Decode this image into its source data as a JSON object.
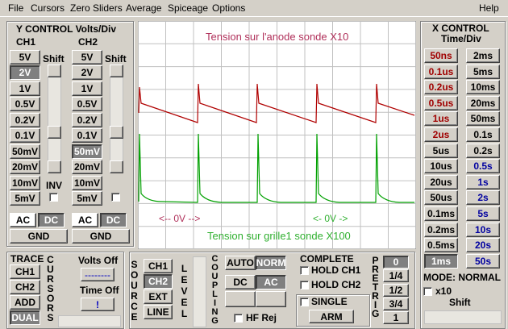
{
  "menu": [
    "File",
    "Cursors",
    "Zero Sliders",
    "Average",
    "Spiceage",
    "Options",
    "Help"
  ],
  "y_control": {
    "title": "Y CONTROL Volts/Div",
    "ch1": {
      "label": "CH1",
      "volts": [
        "5V",
        "2V",
        "1V",
        "0.5V",
        "0.2V",
        "0.1V",
        "50mV",
        "20mV",
        "10mV",
        "5mV"
      ],
      "shift": "Shift",
      "inv": "INV",
      "ac": "AC",
      "dc": "DC",
      "gnd": "GND"
    },
    "ch2": {
      "label": "CH2",
      "volts": [
        "5V",
        "2V",
        "1V",
        "0.5V",
        "0.2V",
        "0.1V",
        "50mV",
        "20mV",
        "10mV",
        "5mV"
      ],
      "shift": "Shift",
      "ac": "AC",
      "dc": "DC",
      "gnd": "GND"
    }
  },
  "screen": {
    "trace1_label": "Tension sur l'anode sonde X10",
    "trace1_zero": "<-- 0V -->",
    "trace2_label": "Tension sur grille1 sonde X100",
    "trace2_zero": "<- 0V ->"
  },
  "x_control": {
    "title": "X CONTROL",
    "subtitle": "Time/Div",
    "col1": [
      "50ns",
      "0.1us",
      "0.2us",
      "0.5us",
      "1us",
      "2us",
      "5us",
      "10us",
      "20us",
      "50us",
      "0.1ms",
      "0.2ms",
      "0.5ms",
      "1ms"
    ],
    "col2": [
      "2ms",
      "5ms",
      "10ms",
      "20ms",
      "50ms",
      "0.1s",
      "0.2s",
      "0.5s",
      "1s",
      "2s",
      "5s",
      "10s",
      "20s",
      "50s"
    ],
    "mode": "MODE: NORMAL",
    "x10": "x10",
    "shift": "Shift"
  },
  "trace": {
    "title": "TRACE",
    "buttons": [
      "CH1",
      "CH2",
      "ADD",
      "DUAL"
    ]
  },
  "cursors": {
    "label": "CURSORS",
    "volts_off": "Volts Off",
    "volts_value": "--------",
    "time_off": "Time Off",
    "time_value": "!"
  },
  "trigger": {
    "source_label": "SOURCE",
    "source": [
      "CH1",
      "CH2",
      "EXT",
      "LINE"
    ],
    "level_label": "LEVEL",
    "coupling_label": "COUPLING",
    "auto": "AUTO",
    "norm": "NORM",
    "dc": "DC",
    "ac": "AC",
    "hf_rej": "HF Rej",
    "complete": "COMPLETE",
    "hold_ch1": "HOLD CH1",
    "hold_ch2": "HOLD CH2",
    "single": "SINGLE",
    "arm": "ARM",
    "pretrig_label": "PRE TRIG",
    "pretrig": [
      "0",
      "1/4",
      "1/2",
      "3/4",
      "1"
    ]
  }
}
